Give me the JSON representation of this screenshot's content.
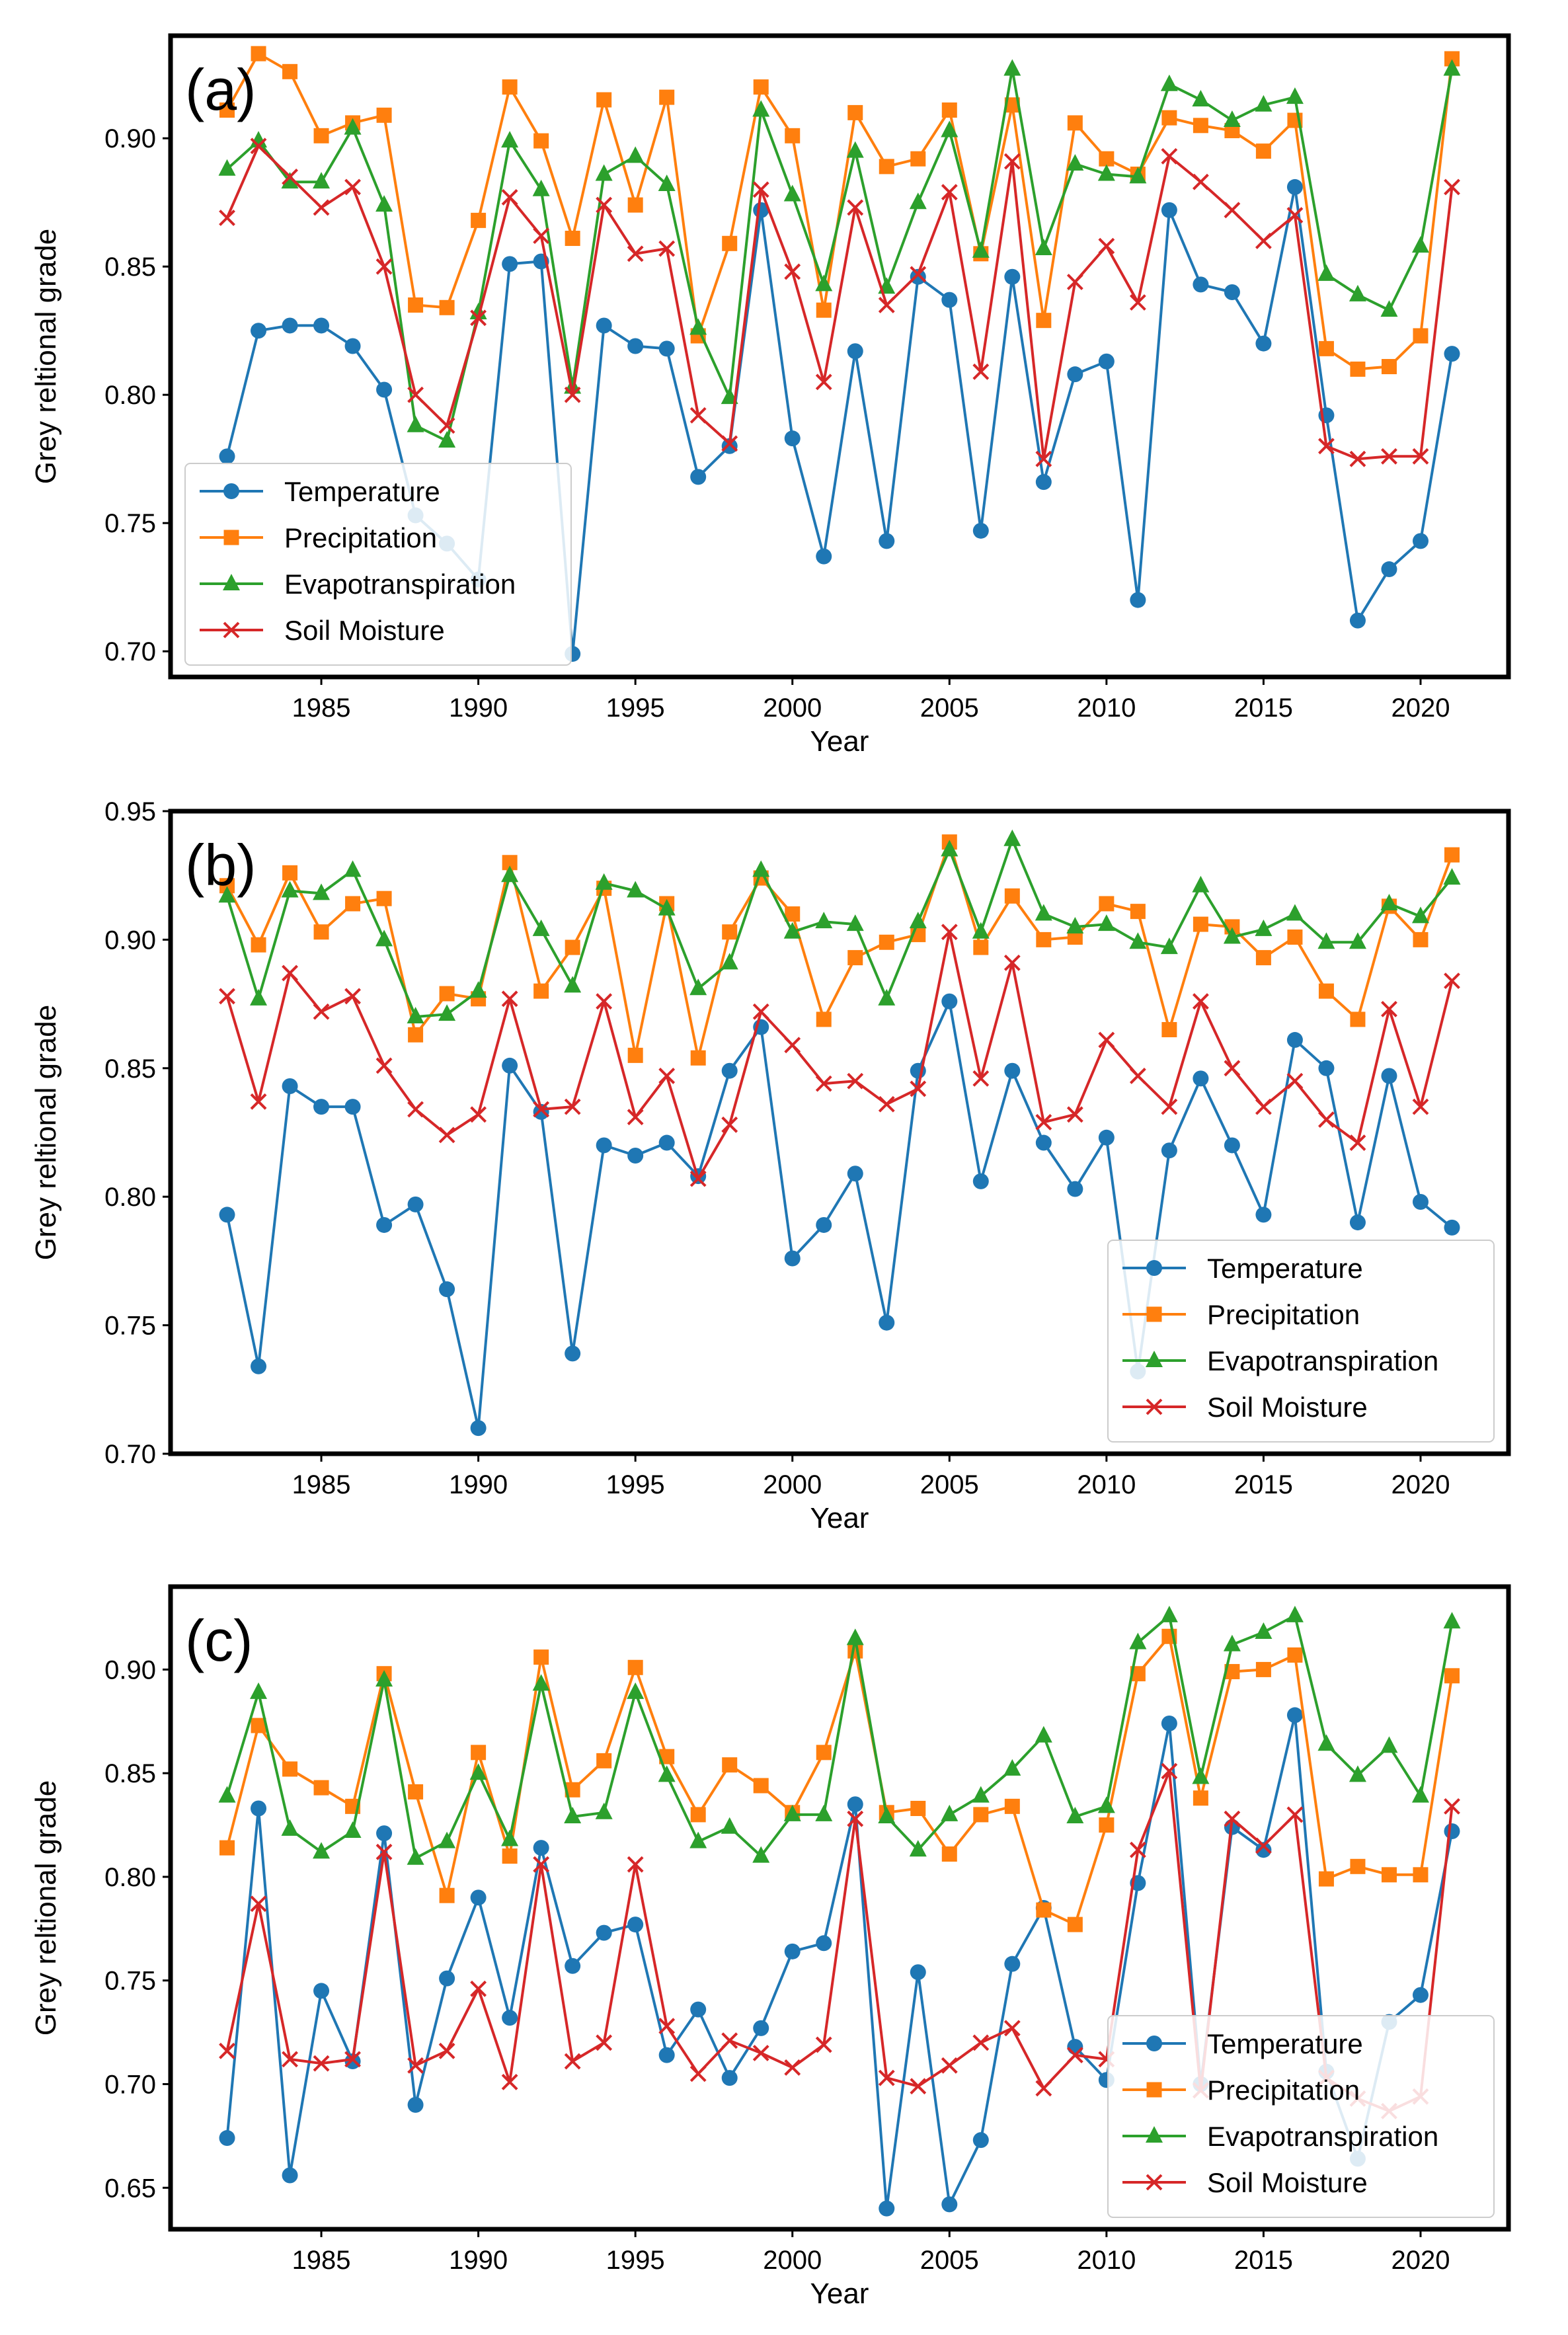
{
  "colors": {
    "Temperature": "#1f77b4",
    "Precipitation": "#ff7f0e",
    "Evapotranspiration": "#2ca02c",
    "Soil Moisture": "#d62728"
  },
  "chart_data": [
    {
      "type": "line",
      "panel_label": "(a)",
      "xlabel": "Year",
      "ylabel": "Grey reltional grade",
      "xlim": [
        1980.2,
        2022.8
      ],
      "ylim": [
        0.69,
        0.94
      ],
      "xticks": [
        "1985",
        "1990",
        "1995",
        "2000",
        "2005",
        "2010",
        "2015",
        "2020"
      ],
      "yticks": [
        "0.70",
        "0.75",
        "0.80",
        "0.85",
        "0.90"
      ],
      "legend_position": "lower-left",
      "x": [
        1982,
        1983,
        1984,
        1985,
        1986,
        1987,
        1988,
        1989,
        1990,
        1991,
        1992,
        1993,
        1994,
        1995,
        1996,
        1997,
        1998,
        1999,
        2000,
        2001,
        2002,
        2003,
        2004,
        2005,
        2006,
        2007,
        2008,
        2009,
        2010,
        2011,
        2012,
        2013,
        2014,
        2015,
        2016,
        2017,
        2018,
        2019,
        2020,
        2021
      ],
      "series": [
        {
          "name": "Temperature",
          "marker": "circle",
          "values": [
            0.776,
            0.825,
            0.827,
            0.827,
            0.819,
            0.802,
            0.753,
            0.742,
            0.728,
            0.851,
            0.852,
            0.699,
            0.827,
            0.819,
            0.818,
            0.768,
            0.78,
            0.872,
            0.783,
            0.737,
            0.817,
            0.743,
            0.846,
            0.837,
            0.747,
            0.846,
            0.766,
            0.808,
            0.813,
            0.72,
            0.872,
            0.843,
            0.84,
            0.82,
            0.881,
            0.792,
            0.712,
            0.732,
            0.743,
            0.816
          ]
        },
        {
          "name": "Precipitation",
          "marker": "square",
          "values": [
            0.911,
            0.933,
            0.926,
            0.901,
            0.906,
            0.909,
            0.835,
            0.834,
            0.868,
            0.92,
            0.899,
            0.861,
            0.915,
            0.874,
            0.916,
            0.823,
            0.859,
            0.92,
            0.901,
            0.833,
            0.91,
            0.889,
            0.892,
            0.911,
            0.855,
            0.913,
            0.829,
            0.906,
            0.892,
            0.886,
            0.908,
            0.905,
            0.903,
            0.895,
            0.907,
            0.818,
            0.81,
            0.811,
            0.823,
            0.931
          ]
        },
        {
          "name": "Evapotranspiration",
          "marker": "triangle",
          "values": [
            0.888,
            0.899,
            0.883,
            0.883,
            0.904,
            0.874,
            0.788,
            0.782,
            0.832,
            0.899,
            0.88,
            0.803,
            0.886,
            0.893,
            0.882,
            0.826,
            0.799,
            0.911,
            0.878,
            0.843,
            0.895,
            0.842,
            0.875,
            0.903,
            0.856,
            0.927,
            0.857,
            0.89,
            0.886,
            0.885,
            0.921,
            0.915,
            0.907,
            0.913,
            0.916,
            0.847,
            0.839,
            0.833,
            0.858,
            0.927
          ]
        },
        {
          "name": "Soil Moisture",
          "marker": "x",
          "values": [
            0.869,
            0.897,
            0.885,
            0.873,
            0.881,
            0.85,
            0.8,
            0.788,
            0.83,
            0.877,
            0.862,
            0.8,
            0.874,
            0.855,
            0.857,
            0.792,
            0.781,
            0.88,
            0.848,
            0.805,
            0.873,
            0.835,
            0.847,
            0.879,
            0.809,
            0.891,
            0.775,
            0.844,
            0.858,
            0.836,
            0.893,
            0.883,
            0.872,
            0.86,
            0.87,
            0.78,
            0.775,
            0.776,
            0.776,
            0.881
          ]
        }
      ]
    },
    {
      "type": "line",
      "panel_label": "(b)",
      "xlabel": "Year",
      "ylabel": "Grey reltional grade",
      "xlim": [
        1980.2,
        2022.8
      ],
      "ylim": [
        0.7,
        0.95
      ],
      "xticks": [
        "1985",
        "1990",
        "1995",
        "2000",
        "2005",
        "2010",
        "2015",
        "2020"
      ],
      "yticks": [
        "0.70",
        "0.75",
        "0.80",
        "0.85",
        "0.90",
        "0.95"
      ],
      "legend_position": "lower-right",
      "x": [
        1982,
        1983,
        1984,
        1985,
        1986,
        1987,
        1988,
        1989,
        1990,
        1991,
        1992,
        1993,
        1994,
        1995,
        1996,
        1997,
        1998,
        1999,
        2000,
        2001,
        2002,
        2003,
        2004,
        2005,
        2006,
        2007,
        2008,
        2009,
        2010,
        2011,
        2012,
        2013,
        2014,
        2015,
        2016,
        2017,
        2018,
        2019,
        2020,
        2021
      ],
      "series": [
        {
          "name": "Temperature",
          "marker": "circle",
          "values": [
            0.793,
            0.734,
            0.843,
            0.835,
            0.835,
            0.789,
            0.797,
            0.764,
            0.71,
            0.851,
            0.833,
            0.739,
            0.82,
            0.816,
            0.821,
            0.808,
            0.849,
            0.866,
            0.776,
            0.789,
            0.809,
            0.751,
            0.849,
            0.876,
            0.806,
            0.849,
            0.821,
            0.803,
            0.823,
            0.732,
            0.818,
            0.846,
            0.82,
            0.793,
            0.861,
            0.85,
            0.79,
            0.847,
            0.798,
            0.788
          ]
        },
        {
          "name": "Precipitation",
          "marker": "square",
          "values": [
            0.921,
            0.898,
            0.926,
            0.903,
            0.914,
            0.916,
            0.863,
            0.879,
            0.877,
            0.93,
            0.88,
            0.897,
            0.92,
            0.855,
            0.914,
            0.854,
            0.903,
            0.924,
            0.91,
            0.869,
            0.893,
            0.899,
            0.902,
            0.938,
            0.897,
            0.917,
            0.9,
            0.901,
            0.914,
            0.911,
            0.865,
            0.906,
            0.905,
            0.893,
            0.901,
            0.88,
            0.869,
            0.913,
            0.9,
            0.933
          ]
        },
        {
          "name": "Evapotranspiration",
          "marker": "triangle",
          "values": [
            0.917,
            0.877,
            0.919,
            0.918,
            0.927,
            0.9,
            0.87,
            0.871,
            0.88,
            0.925,
            0.904,
            0.882,
            0.922,
            0.919,
            0.912,
            0.881,
            0.891,
            0.927,
            0.903,
            0.907,
            0.906,
            0.877,
            0.907,
            0.935,
            0.903,
            0.939,
            0.91,
            0.905,
            0.906,
            0.899,
            0.897,
            0.921,
            0.901,
            0.904,
            0.91,
            0.899,
            0.899,
            0.914,
            0.909,
            0.924
          ]
        },
        {
          "name": "Soil Moisture",
          "marker": "x",
          "values": [
            0.878,
            0.837,
            0.887,
            0.872,
            0.878,
            0.851,
            0.834,
            0.824,
            0.832,
            0.877,
            0.834,
            0.835,
            0.876,
            0.831,
            0.847,
            0.807,
            0.828,
            0.872,
            0.859,
            0.844,
            0.845,
            0.836,
            0.842,
            0.903,
            0.846,
            0.891,
            0.829,
            0.832,
            0.861,
            0.847,
            0.835,
            0.876,
            0.85,
            0.835,
            0.845,
            0.83,
            0.821,
            0.873,
            0.835,
            0.884
          ]
        }
      ]
    },
    {
      "type": "line",
      "panel_label": "(c)",
      "xlabel": "Year",
      "ylabel": "Grey reltional grade",
      "xlim": [
        1980.2,
        2022.8
      ],
      "ylim": [
        0.63,
        0.94
      ],
      "xticks": [
        "1985",
        "1990",
        "1995",
        "2000",
        "2005",
        "2010",
        "2015",
        "2020"
      ],
      "yticks": [
        "0.65",
        "0.70",
        "0.75",
        "0.80",
        "0.85",
        "0.90"
      ],
      "legend_position": "lower-right",
      "x": [
        1982,
        1983,
        1984,
        1985,
        1986,
        1987,
        1988,
        1989,
        1990,
        1991,
        1992,
        1993,
        1994,
        1995,
        1996,
        1997,
        1998,
        1999,
        2000,
        2001,
        2002,
        2003,
        2004,
        2005,
        2006,
        2007,
        2008,
        2009,
        2010,
        2011,
        2012,
        2013,
        2014,
        2015,
        2016,
        2017,
        2018,
        2019,
        2020,
        2021
      ],
      "series": [
        {
          "name": "Temperature",
          "marker": "circle",
          "values": [
            0.674,
            0.833,
            0.656,
            0.745,
            0.711,
            0.821,
            0.69,
            0.751,
            0.79,
            0.732,
            0.814,
            0.757,
            0.773,
            0.777,
            0.714,
            0.736,
            0.703,
            0.727,
            0.764,
            0.768,
            0.835,
            0.64,
            0.754,
            0.642,
            0.673,
            0.758,
            0.785,
            0.718,
            0.702,
            0.797,
            0.874,
            0.7,
            0.824,
            0.813,
            0.878,
            0.706,
            0.664,
            0.73,
            0.743,
            0.822
          ]
        },
        {
          "name": "Precipitation",
          "marker": "square",
          "values": [
            0.814,
            0.873,
            0.852,
            0.843,
            0.834,
            0.898,
            0.841,
            0.791,
            0.86,
            0.81,
            0.906,
            0.842,
            0.856,
            0.901,
            0.858,
            0.83,
            0.854,
            0.844,
            0.831,
            0.86,
            0.909,
            0.831,
            0.833,
            0.811,
            0.83,
            0.834,
            0.784,
            0.777,
            0.825,
            0.898,
            0.916,
            0.838,
            0.899,
            0.9,
            0.907,
            0.799,
            0.805,
            0.801,
            0.801,
            0.897
          ]
        },
        {
          "name": "Evapotranspiration",
          "marker": "triangle",
          "values": [
            0.839,
            0.889,
            0.823,
            0.812,
            0.822,
            0.895,
            0.809,
            0.817,
            0.85,
            0.818,
            0.893,
            0.829,
            0.831,
            0.889,
            0.849,
            0.817,
            0.824,
            0.81,
            0.83,
            0.83,
            0.915,
            0.829,
            0.813,
            0.83,
            0.839,
            0.852,
            0.868,
            0.829,
            0.834,
            0.913,
            0.926,
            0.848,
            0.912,
            0.918,
            0.926,
            0.864,
            0.849,
            0.863,
            0.839,
            0.923
          ]
        },
        {
          "name": "Soil Moisture",
          "marker": "x",
          "values": [
            0.716,
            0.787,
            0.712,
            0.71,
            0.712,
            0.812,
            0.709,
            0.716,
            0.746,
            0.701,
            0.806,
            0.711,
            0.72,
            0.806,
            0.728,
            0.705,
            0.721,
            0.715,
            0.708,
            0.719,
            0.828,
            0.703,
            0.699,
            0.709,
            0.72,
            0.727,
            0.698,
            0.714,
            0.712,
            0.813,
            0.851,
            0.697,
            0.828,
            0.815,
            0.83,
            0.703,
            0.693,
            0.687,
            0.694,
            0.834
          ]
        }
      ]
    }
  ]
}
